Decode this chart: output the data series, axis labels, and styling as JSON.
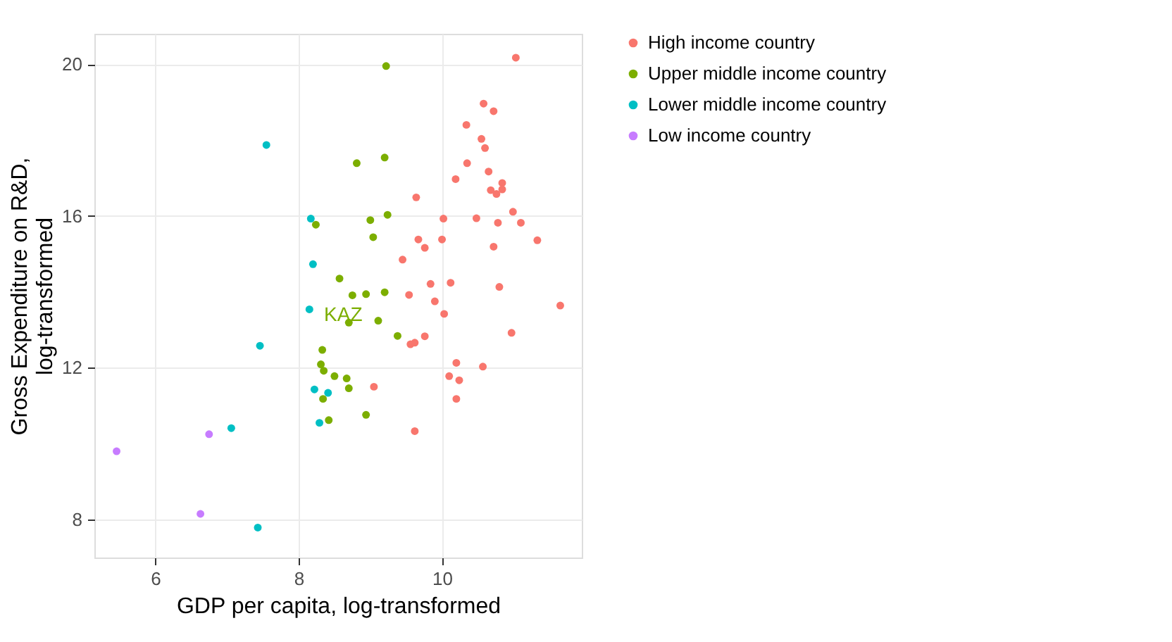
{
  "chart_data": {
    "type": "scatter",
    "xlabel": "GDP per capita, log-transformed",
    "ylabel": "Gross Expenditure on R&D, log-transformed",
    "xlim": [
      5.15,
      11.95
    ],
    "ylim": [
      7.0,
      20.8
    ],
    "xticks": [
      6,
      8,
      10
    ],
    "yticks": [
      8,
      12,
      16,
      20
    ],
    "grid": true,
    "legend": "right",
    "marker": "circle",
    "annotations": [
      {
        "text": "KAZ",
        "x": 8.7,
        "y": 13.19
      }
    ],
    "series": [
      {
        "name": "High income country",
        "color": "#f8766d",
        "x": [
          11.03,
          10.58,
          10.72,
          10.34,
          10.55,
          10.6,
          10.35,
          10.65,
          10.19,
          10.84,
          10.68,
          10.76,
          10.84,
          9.64,
          10.99,
          10.02,
          10.48,
          10.78,
          11.1,
          9.67,
          10.0,
          9.76,
          10.72,
          11.33,
          9.45,
          9.84,
          10.12,
          10.8,
          9.54,
          9.9,
          10.03,
          9.56,
          9.62,
          9.76,
          10.97,
          9.05,
          10.2,
          10.1,
          10.24,
          10.2,
          10.57,
          9.62,
          11.65
        ],
        "values": [
          20.17,
          18.96,
          18.76,
          18.4,
          18.03,
          17.79,
          17.39,
          17.17,
          16.97,
          16.87,
          16.68,
          16.58,
          16.7,
          16.49,
          16.11,
          15.93,
          15.94,
          15.82,
          15.82,
          15.38,
          15.38,
          15.16,
          15.19,
          15.36,
          14.85,
          14.21,
          14.24,
          14.13,
          13.92,
          13.75,
          13.42,
          12.62,
          12.66,
          12.83,
          12.92,
          11.5,
          12.13,
          11.78,
          11.67,
          11.18,
          12.03,
          10.33,
          13.64
        ]
      },
      {
        "name": "Upper middle income country",
        "color": "#7cae00",
        "x": [
          9.22,
          8.81,
          9.2,
          9.24,
          8.24,
          9.0,
          9.04,
          8.57,
          8.75,
          8.94,
          9.2,
          8.7,
          9.11,
          9.38,
          8.33,
          8.31,
          8.35,
          8.5,
          8.67,
          8.7,
          8.34,
          8.94,
          8.42
        ],
        "values": [
          19.95,
          17.39,
          17.54,
          16.03,
          15.77,
          15.89,
          15.44,
          14.35,
          13.91,
          13.94,
          13.99,
          13.19,
          13.24,
          12.84,
          12.47,
          12.09,
          11.92,
          11.78,
          11.72,
          11.46,
          11.18,
          10.76,
          10.62
        ]
      },
      {
        "name": "Lower middle income country",
        "color": "#00bfc4",
        "x": [
          7.55,
          8.17,
          8.2,
          8.15,
          7.46,
          8.22,
          8.41,
          8.29,
          7.06,
          7.43
        ],
        "values": [
          17.87,
          15.93,
          14.73,
          13.54,
          12.58,
          11.43,
          11.34,
          10.55,
          10.41,
          7.79
        ]
      },
      {
        "name": "Low income country",
        "color": "#c77cff",
        "x": [
          6.75,
          5.46,
          6.63
        ],
        "values": [
          10.25,
          9.8,
          8.15
        ]
      }
    ]
  }
}
